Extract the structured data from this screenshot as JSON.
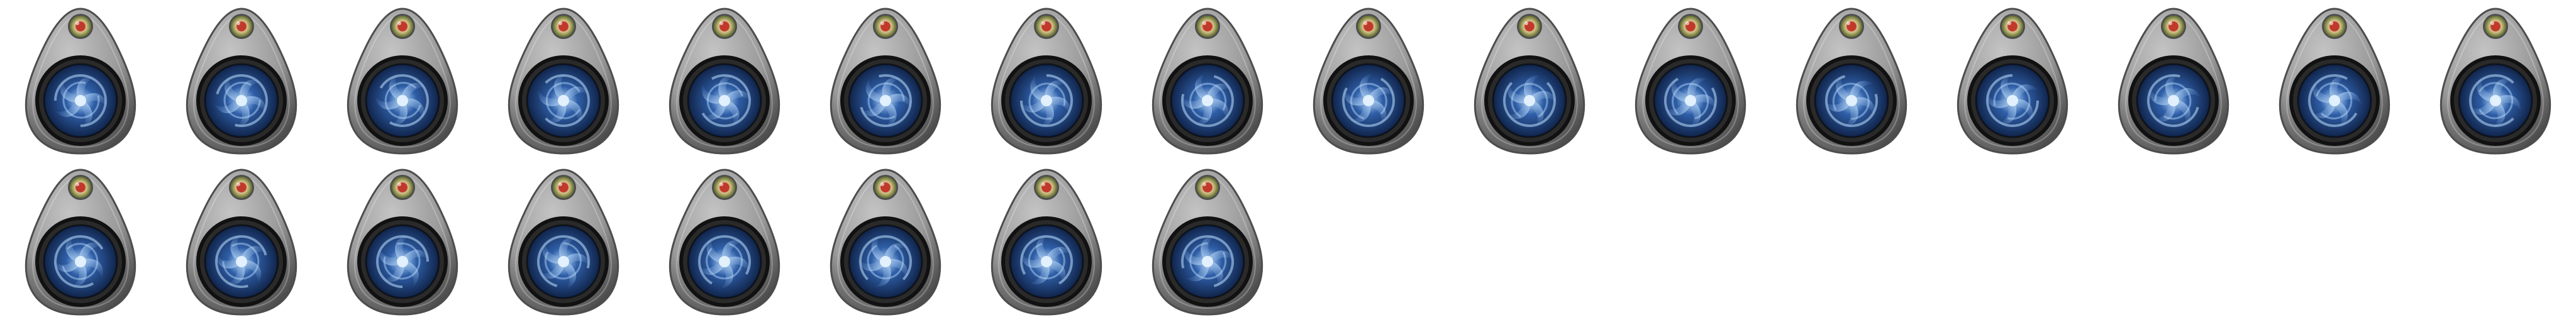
{
  "sheet": {
    "name": "portal-amulet-sprite-sheet",
    "columns": 16,
    "rows": 2,
    "frame_count": 24,
    "background": "#ffffff"
  },
  "palette": {
    "stone_light": "#c4c4c4",
    "stone_mid": "#9a9a9a",
    "stone_dark": "#4d4d4d",
    "ring_dark": "#111111",
    "vortex_deep": "#0b1a3a",
    "vortex_mid": "#2f5fa8",
    "vortex_light": "#bfe0ff",
    "gem_outer": "#6f7a3a",
    "gem_mid": "#d9c58f",
    "gem_core": "#c0392b"
  },
  "animation": {
    "type": "swirl-rotation",
    "degrees_per_frame": 15
  },
  "icons": {
    "frame": "portal-amulet-icon",
    "gem": "gem-icon",
    "vortex": "vortex-icon"
  }
}
